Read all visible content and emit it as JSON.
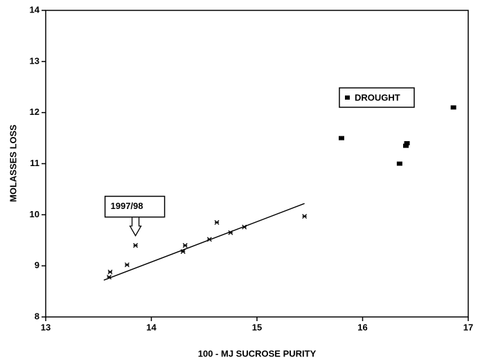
{
  "chart_data": {
    "type": "scatter",
    "xlabel": "100 - MJ SUCROSE PURITY",
    "ylabel": "MOLASSES LOSS",
    "xlim": [
      13,
      17
    ],
    "xticks": [
      13,
      14,
      15,
      16,
      17
    ],
    "ylim": [
      8,
      14
    ],
    "yticks": [
      8,
      9,
      10,
      11,
      12,
      13,
      14
    ],
    "series": [
      {
        "color": "#000000",
        "marker": "asterisk",
        "x": [
          13.6,
          13.61,
          13.77,
          13.85,
          14.3,
          14.32,
          14.55,
          14.62,
          14.75,
          14.88,
          15.45
        ],
        "values": [
          8.78,
          8.88,
          9.02,
          9.4,
          9.28,
          9.4,
          9.52,
          9.85,
          9.65,
          9.76,
          9.97
        ]
      },
      {
        "name": "DROUGHT",
        "color": "#000000",
        "marker": "square",
        "x": [
          15.8,
          16.35,
          16.41,
          16.42,
          16.86
        ],
        "values": [
          11.5,
          11.0,
          11.35,
          11.4,
          12.1
        ]
      }
    ],
    "trendline": {
      "x": [
        13.55,
        15.45
      ],
      "values": [
        8.72,
        10.22
      ]
    },
    "annotations": [
      {
        "text": "1997/98",
        "x": 13.85,
        "y": 9.4
      }
    ]
  }
}
